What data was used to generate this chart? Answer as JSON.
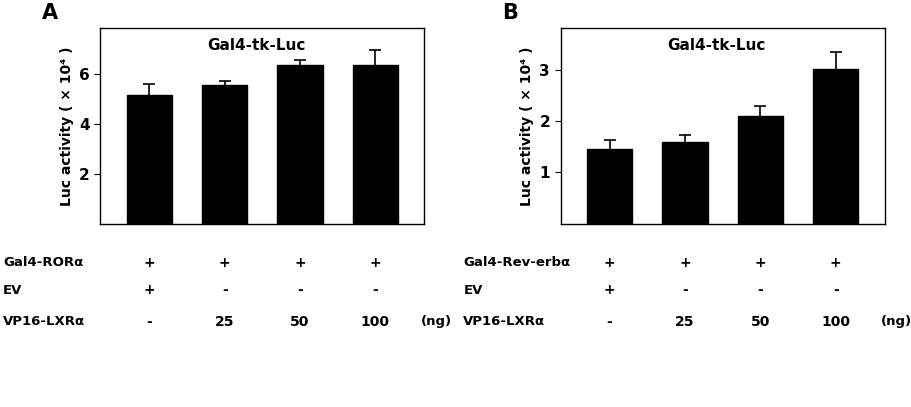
{
  "panel_A": {
    "label": "A",
    "title": "Gal4-tk-Luc",
    "ylabel": "Luc activity ( × 10⁴ )",
    "bar_values": [
      5.15,
      5.55,
      6.35,
      6.35
    ],
    "bar_errors": [
      0.45,
      0.15,
      0.2,
      0.6
    ],
    "ylim": [
      0,
      7.8
    ],
    "yticks": [
      2,
      4,
      6
    ],
    "row1_label": "Gal4-RORα",
    "row1_vals": [
      "+",
      "+",
      "+",
      "+"
    ],
    "row2_label": "EV",
    "row2_vals": [
      "+",
      "-",
      "-",
      "-"
    ],
    "row3_label": "VP16-LXRα",
    "row3_vals": [
      "-",
      "25",
      "50",
      "100"
    ],
    "ng_label": "(ng)"
  },
  "panel_B": {
    "label": "B",
    "title": "Gal4-tk-Luc",
    "ylabel": "Luc activity ( × 10⁴ )",
    "bar_values": [
      1.45,
      1.6,
      2.1,
      3.02
    ],
    "bar_errors": [
      0.18,
      0.12,
      0.2,
      0.32
    ],
    "ylim": [
      0,
      3.8
    ],
    "yticks": [
      1,
      2,
      3
    ],
    "row1_label": "Gal4-Rev-erbα",
    "row1_vals": [
      "+",
      "+",
      "+",
      "+"
    ],
    "row2_label": "EV",
    "row2_vals": [
      "+",
      "-",
      "-",
      "-"
    ],
    "row3_label": "VP16-LXRα",
    "row3_vals": [
      "-",
      "25",
      "50",
      "100"
    ],
    "ng_label": "(ng)"
  },
  "bar_color": "#000000",
  "bar_width": 0.6,
  "figsize": [
    9.12,
    4.07
  ],
  "dpi": 100
}
